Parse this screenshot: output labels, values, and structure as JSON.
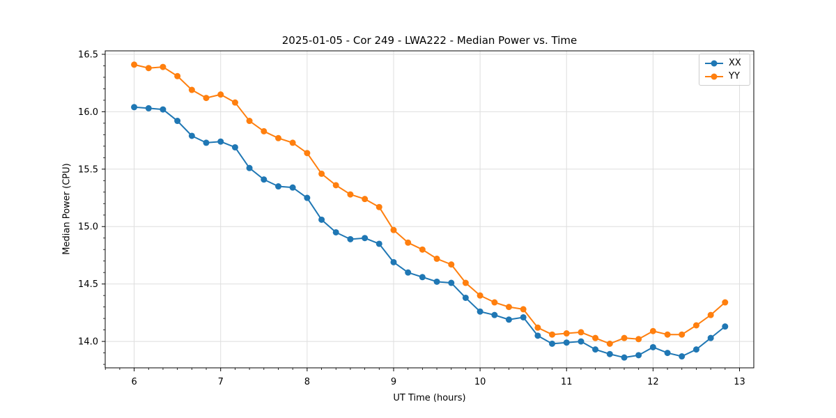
{
  "figure": {
    "title": "2025-01-05 - Cor 249 - LWA222 - Median Power vs. Time",
    "xlabel": "UT Time (hours)",
    "ylabel": "Median Power (CPU)"
  },
  "legend": {
    "items": [
      {
        "label": "XX",
        "color": "#1f77b4"
      },
      {
        "label": "YY",
        "color": "#ff7f0e"
      }
    ]
  },
  "chart_data": {
    "type": "line",
    "title": "2025-01-05 - Cor 249 - LWA222 - Median Power vs. Time",
    "xlabel": "UT Time (hours)",
    "ylabel": "Median Power (CPU)",
    "grid": true,
    "legend_position": "upper right",
    "xlim": [
      5.665,
      13.165
    ],
    "ylim": [
      13.77,
      16.53
    ],
    "xticks": [
      6,
      7,
      8,
      9,
      10,
      11,
      12,
      13
    ],
    "yticks": [
      14.0,
      14.5,
      15.0,
      15.5,
      16.0,
      16.5
    ],
    "x_minor_step": 0.16667,
    "y_minor_step": 0.1,
    "x": [
      6.0,
      6.167,
      6.333,
      6.5,
      6.667,
      6.833,
      7.0,
      7.167,
      7.333,
      7.5,
      7.667,
      7.833,
      8.0,
      8.167,
      8.333,
      8.5,
      8.667,
      8.833,
      9.0,
      9.167,
      9.333,
      9.5,
      9.667,
      9.833,
      10.0,
      10.167,
      10.333,
      10.5,
      10.667,
      10.833,
      11.0,
      11.167,
      11.333,
      11.5,
      11.667,
      11.833,
      12.0,
      12.167,
      12.333,
      12.5,
      12.667,
      12.833
    ],
    "series": [
      {
        "name": "XX",
        "color": "#1f77b4",
        "marker": "circle",
        "values": [
          16.04,
          16.03,
          16.02,
          15.92,
          15.79,
          15.73,
          15.74,
          15.69,
          15.51,
          15.41,
          15.35,
          15.34,
          15.25,
          15.06,
          14.95,
          14.89,
          14.9,
          14.85,
          14.69,
          14.6,
          14.56,
          14.52,
          14.51,
          14.38,
          14.26,
          14.23,
          14.19,
          14.21,
          14.05,
          13.98,
          13.99,
          14.0,
          13.93,
          13.89,
          13.86,
          13.88,
          13.95,
          13.9,
          13.87,
          13.93,
          14.03,
          14.13
        ]
      },
      {
        "name": "YY",
        "color": "#ff7f0e",
        "marker": "circle",
        "values": [
          16.41,
          16.38,
          16.39,
          16.31,
          16.19,
          16.12,
          16.15,
          16.08,
          15.92,
          15.83,
          15.77,
          15.73,
          15.64,
          15.46,
          15.36,
          15.28,
          15.24,
          15.17,
          14.97,
          14.86,
          14.8,
          14.72,
          14.67,
          14.51,
          14.4,
          14.34,
          14.3,
          14.28,
          14.12,
          14.06,
          14.07,
          14.08,
          14.03,
          13.98,
          14.03,
          14.02,
          14.09,
          14.06,
          14.06,
          14.14,
          14.23,
          14.34
        ]
      }
    ]
  }
}
